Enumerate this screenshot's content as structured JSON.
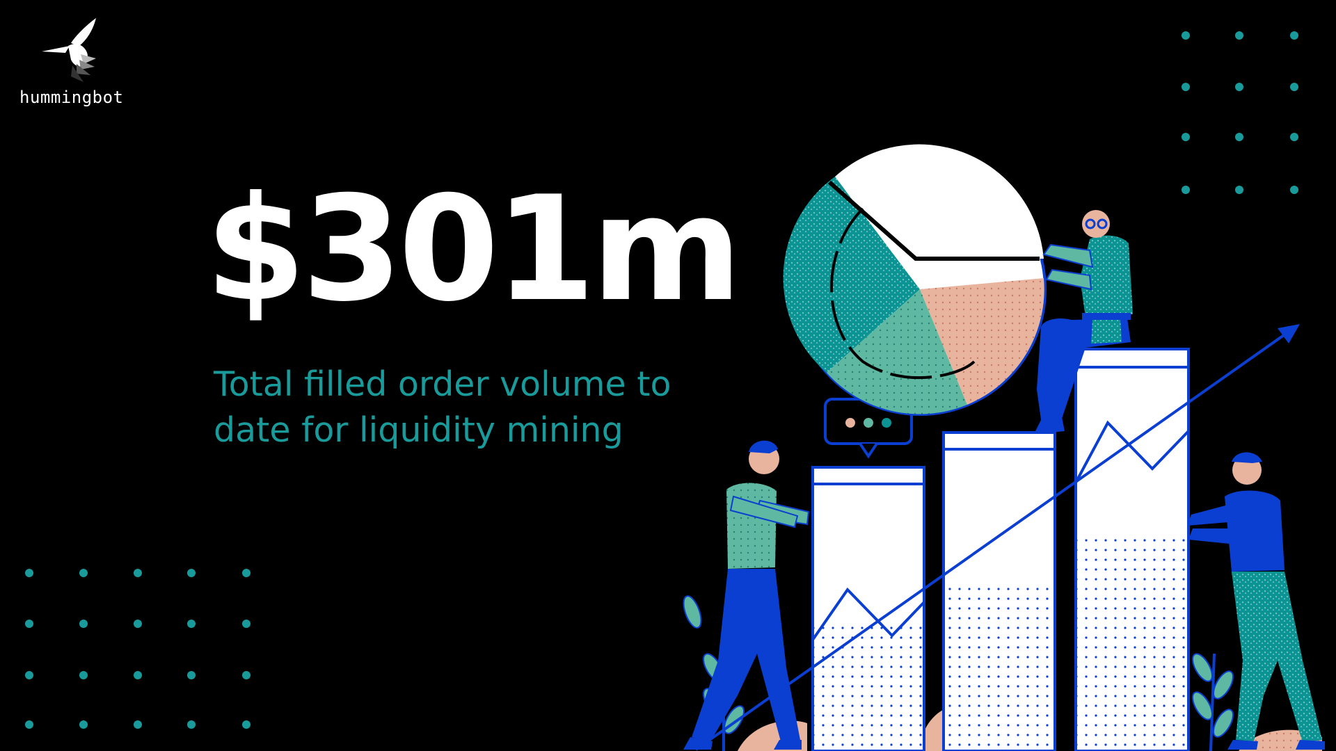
{
  "brand": {
    "name": "hummingbot",
    "logo_icon": "hummingbird-icon"
  },
  "headline": {
    "value": "$301m"
  },
  "subhead": {
    "line1": "Total filled order volume to",
    "line2": "date for liquidity mining"
  },
  "colors": {
    "background": "#000000",
    "teal": "#1a9b9b",
    "blue": "#0a3fd1",
    "mint": "#5fb8a1",
    "peach": "#e8b49e",
    "white": "#ffffff"
  },
  "illustration": {
    "name": "growth-chart-illustration",
    "chat_bubble_dots": 3
  }
}
